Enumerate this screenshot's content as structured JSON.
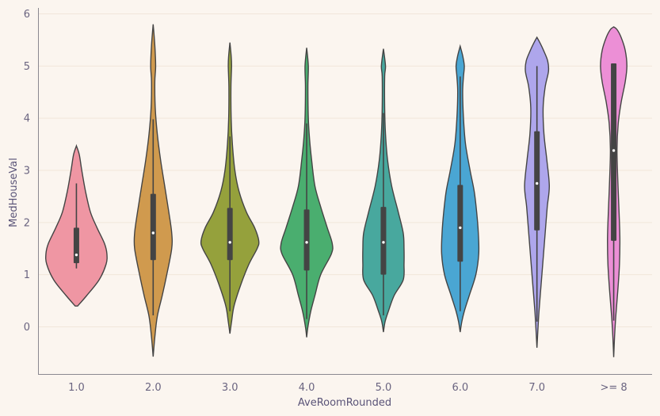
{
  "chart_data": {
    "type": "violin",
    "xlabel": "AveRoomRounded",
    "ylabel": "MedHouseVal",
    "ylim": [
      -0.9,
      6.1
    ],
    "yticks": [
      0,
      1,
      2,
      3,
      4,
      5,
      6
    ],
    "ytick_labels": [
      "0",
      "1",
      "2",
      "3",
      "4",
      "5",
      "6"
    ],
    "grid": "horizontal",
    "categories": [
      "1.0",
      "2.0",
      "3.0",
      "4.0",
      "5.0",
      "6.0",
      "7.0",
      ">= 8"
    ],
    "violins": [
      {
        "category": "1.0",
        "color": "#ef96a3",
        "min": 1.12,
        "q1": 1.22,
        "median": 1.38,
        "q3": 1.9,
        "max": 2.75,
        "profile": [
          [
            0.4,
            0.03
          ],
          [
            0.6,
            0.25
          ],
          [
            0.9,
            0.55
          ],
          [
            1.2,
            0.72
          ],
          [
            1.4,
            0.74
          ],
          [
            1.6,
            0.68
          ],
          [
            1.9,
            0.5
          ],
          [
            2.2,
            0.34
          ],
          [
            2.6,
            0.22
          ],
          [
            3.0,
            0.13
          ],
          [
            3.3,
            0.07
          ],
          [
            3.47,
            0.0
          ]
        ]
      },
      {
        "category": "2.0",
        "color": "#d09a4e",
        "min": 0.22,
        "q1": 1.28,
        "median": 1.8,
        "q3": 2.55,
        "max": 3.98,
        "profile": [
          [
            -0.57,
            0.0
          ],
          [
            -0.2,
            0.04
          ],
          [
            0.2,
            0.1
          ],
          [
            0.6,
            0.22
          ],
          [
            1.0,
            0.33
          ],
          [
            1.5,
            0.45
          ],
          [
            1.8,
            0.45
          ],
          [
            2.2,
            0.38
          ],
          [
            2.7,
            0.28
          ],
          [
            3.2,
            0.18
          ],
          [
            3.7,
            0.1
          ],
          [
            4.2,
            0.05
          ],
          [
            4.7,
            0.04
          ],
          [
            5.0,
            0.06
          ],
          [
            5.4,
            0.04
          ],
          [
            5.8,
            0.0
          ]
        ]
      },
      {
        "category": "3.0",
        "color": "#95a13c",
        "min": 0.3,
        "q1": 1.28,
        "median": 1.62,
        "q3": 2.28,
        "max": 3.65,
        "profile": [
          [
            -0.13,
            0.0
          ],
          [
            0.1,
            0.04
          ],
          [
            0.4,
            0.1
          ],
          [
            0.8,
            0.26
          ],
          [
            1.2,
            0.46
          ],
          [
            1.5,
            0.66
          ],
          [
            1.65,
            0.7
          ],
          [
            1.9,
            0.6
          ],
          [
            2.2,
            0.4
          ],
          [
            2.6,
            0.22
          ],
          [
            3.0,
            0.12
          ],
          [
            3.5,
            0.06
          ],
          [
            4.0,
            0.03
          ],
          [
            4.6,
            0.025
          ],
          [
            5.0,
            0.04
          ],
          [
            5.2,
            0.03
          ],
          [
            5.45,
            0.0
          ]
        ]
      },
      {
        "category": "4.0",
        "color": "#4aae6f",
        "min": 0.15,
        "q1": 1.08,
        "median": 1.62,
        "q3": 2.25,
        "max": 3.9,
        "profile": [
          [
            -0.2,
            0.0
          ],
          [
            0.0,
            0.03
          ],
          [
            0.3,
            0.1
          ],
          [
            0.6,
            0.2
          ],
          [
            1.0,
            0.34
          ],
          [
            1.4,
            0.6
          ],
          [
            1.6,
            0.62
          ],
          [
            1.9,
            0.5
          ],
          [
            2.3,
            0.34
          ],
          [
            2.7,
            0.2
          ],
          [
            3.2,
            0.12
          ],
          [
            3.6,
            0.07
          ],
          [
            4.0,
            0.04
          ],
          [
            4.6,
            0.03
          ],
          [
            5.0,
            0.04
          ],
          [
            5.35,
            0.0
          ]
        ]
      },
      {
        "category": "5.0",
        "color": "#48a89e",
        "min": 0.22,
        "q1": 1.0,
        "median": 1.62,
        "q3": 2.3,
        "max": 4.1,
        "profile": [
          [
            -0.1,
            0.0
          ],
          [
            0.1,
            0.04
          ],
          [
            0.3,
            0.12
          ],
          [
            0.6,
            0.26
          ],
          [
            0.9,
            0.48
          ],
          [
            1.2,
            0.5
          ],
          [
            1.5,
            0.5
          ],
          [
            1.8,
            0.48
          ],
          [
            2.2,
            0.36
          ],
          [
            2.7,
            0.2
          ],
          [
            3.2,
            0.1
          ],
          [
            3.7,
            0.05
          ],
          [
            4.2,
            0.03
          ],
          [
            4.8,
            0.03
          ],
          [
            5.0,
            0.05
          ],
          [
            5.33,
            0.0
          ]
        ]
      },
      {
        "category": "6.0",
        "color": "#4aa6d3",
        "min": 0.3,
        "q1": 1.25,
        "median": 1.9,
        "q3": 2.72,
        "max": 4.8,
        "profile": [
          [
            -0.1,
            0.0
          ],
          [
            0.1,
            0.04
          ],
          [
            0.3,
            0.1
          ],
          [
            0.6,
            0.22
          ],
          [
            1.0,
            0.38
          ],
          [
            1.4,
            0.45
          ],
          [
            1.8,
            0.44
          ],
          [
            2.2,
            0.4
          ],
          [
            2.6,
            0.34
          ],
          [
            3.0,
            0.24
          ],
          [
            3.5,
            0.13
          ],
          [
            4.0,
            0.08
          ],
          [
            4.5,
            0.06
          ],
          [
            4.8,
            0.08
          ],
          [
            5.0,
            0.1
          ],
          [
            5.2,
            0.06
          ],
          [
            5.38,
            0.0
          ]
        ]
      },
      {
        "category": "7.0",
        "color": "#aea6ec",
        "min": 0.1,
        "q1": 1.85,
        "median": 2.75,
        "q3": 3.75,
        "max": 5.0,
        "profile": [
          [
            -0.4,
            0.0
          ],
          [
            -0.1,
            0.02
          ],
          [
            0.3,
            0.05
          ],
          [
            0.8,
            0.1
          ],
          [
            1.3,
            0.15
          ],
          [
            1.8,
            0.2
          ],
          [
            2.3,
            0.25
          ],
          [
            2.7,
            0.3
          ],
          [
            3.2,
            0.24
          ],
          [
            3.7,
            0.17
          ],
          [
            4.2,
            0.15
          ],
          [
            4.6,
            0.2
          ],
          [
            4.9,
            0.28
          ],
          [
            5.1,
            0.26
          ],
          [
            5.3,
            0.16
          ],
          [
            5.45,
            0.07
          ],
          [
            5.55,
            0.0
          ]
        ]
      },
      {
        "category": ">= 8",
        "color": "#ec8fd6",
        "min": 0.12,
        "q1": 1.65,
        "median": 3.38,
        "q3": 5.05,
        "max": 5.05,
        "profile": [
          [
            -0.58,
            0.0
          ],
          [
            -0.2,
            0.02
          ],
          [
            0.2,
            0.05
          ],
          [
            0.7,
            0.1
          ],
          [
            1.2,
            0.14
          ],
          [
            1.7,
            0.15
          ],
          [
            2.2,
            0.13
          ],
          [
            2.8,
            0.1
          ],
          [
            3.4,
            0.08
          ],
          [
            3.9,
            0.11
          ],
          [
            4.3,
            0.18
          ],
          [
            4.7,
            0.28
          ],
          [
            5.0,
            0.32
          ],
          [
            5.3,
            0.28
          ],
          [
            5.55,
            0.18
          ],
          [
            5.7,
            0.08
          ],
          [
            5.75,
            0.0
          ]
        ]
      }
    ]
  }
}
